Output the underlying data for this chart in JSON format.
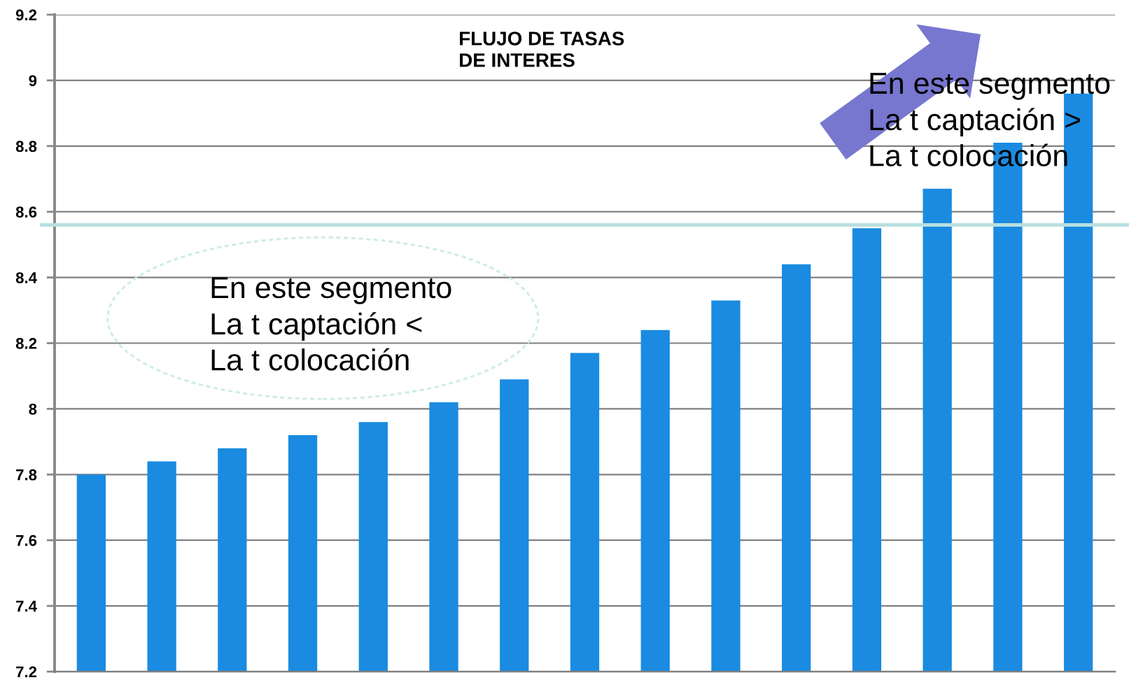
{
  "chart_data": {
    "type": "bar",
    "title": "FLUJO DE TASAS\nDE INTERES",
    "categories": [
      null,
      null,
      null,
      null,
      null,
      null,
      null,
      null,
      null,
      null,
      null,
      null,
      null,
      null,
      null
    ],
    "values": [
      7.8,
      7.84,
      7.88,
      7.92,
      7.96,
      8.02,
      8.09,
      8.17,
      8.24,
      8.33,
      8.44,
      8.55,
      8.67,
      8.81,
      8.96
    ],
    "color": "#1a8be0",
    "ylim": [
      7.2,
      9.2
    ],
    "yticks": [
      7.2,
      7.4,
      7.6,
      7.8,
      8,
      8.2,
      8.4,
      8.6,
      8.8,
      9,
      9.2
    ],
    "grid": "y",
    "tick_labels": "y",
    "ref_lines": [
      {
        "axis": "y",
        "value": 8.56,
        "color": "#b9dfe0"
      }
    ],
    "annotations": [
      "En este segmento\nLa t captación <\nLa t colocación",
      "En este segmento\nLa t captación >\nLa t colocación"
    ]
  }
}
